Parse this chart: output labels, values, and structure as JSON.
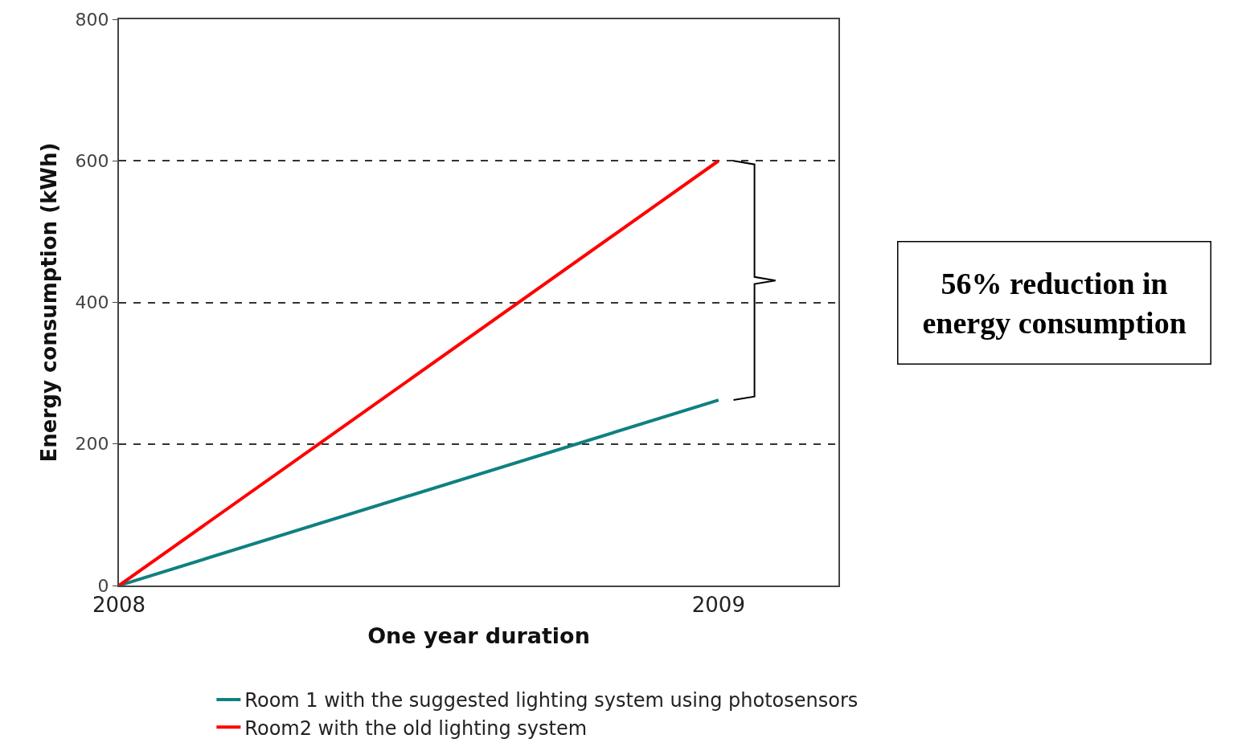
{
  "chart_data": {
    "type": "line",
    "xlabel": "One year duration",
    "ylabel": "Energy consumption (kWh)",
    "x": [
      2008,
      2009
    ],
    "series": [
      {
        "name": "Room 1 with the suggested lighting system using photosensors",
        "color": "#108080",
        "values": [
          0,
          262
        ]
      },
      {
        "name": "Room2 with the old lighting system",
        "color": "#ff0000",
        "values": [
          0,
          600
        ]
      }
    ],
    "xlim": [
      2008,
      2009.2
    ],
    "xticks": [
      2008,
      2009
    ],
    "ylim": [
      0,
      800
    ],
    "yticks": [
      0,
      200,
      400,
      600,
      800
    ],
    "grid": "y",
    "legend": "bottom",
    "line_style": "solid",
    "marker": "none",
    "annotations": [
      "56% reduction in energy consumption"
    ]
  }
}
